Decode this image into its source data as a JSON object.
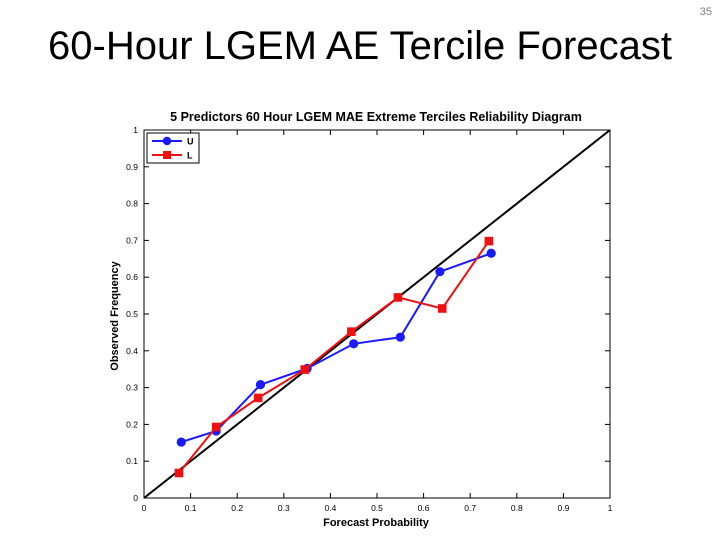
{
  "slide": {
    "number": "35",
    "title": "60-Hour LGEM AE Tercile Forecast"
  },
  "chart_data": {
    "type": "line",
    "title": "5 Predictors  60  Hour LGEM MAE Extreme Terciles Reliability Diagram",
    "xlabel": "Forecast Probability",
    "ylabel": "Observed Frequency",
    "xlim": [
      0,
      1
    ],
    "ylim": [
      0,
      1
    ],
    "xticks": [
      "0",
      "0.1",
      "0.2",
      "0.3",
      "0.4",
      "0.5",
      "0.6",
      "0.7",
      "0.8",
      "0.9",
      "1"
    ],
    "yticks": [
      "0",
      "0.1",
      "0.2",
      "0.3",
      "0.4",
      "0.5",
      "0.6",
      "0.7",
      "0.8",
      "0.9",
      "1"
    ],
    "legend_position": "top-left",
    "reference_line": [
      [
        0,
        0
      ],
      [
        1,
        1
      ]
    ],
    "series": [
      {
        "name": "U",
        "color": "#1a1aff",
        "marker": "circle",
        "x": [
          0.08,
          0.155,
          0.25,
          0.35,
          0.45,
          0.55,
          0.635,
          0.745
        ],
        "y": [
          0.152,
          0.182,
          0.308,
          0.352,
          0.419,
          0.437,
          0.615,
          0.665
        ]
      },
      {
        "name": "L",
        "color": "#ee1111",
        "marker": "square",
        "x": [
          0.075,
          0.155,
          0.245,
          0.345,
          0.445,
          0.545,
          0.64,
          0.74
        ],
        "y": [
          0.068,
          0.193,
          0.272,
          0.349,
          0.452,
          0.545,
          0.515,
          0.698
        ]
      }
    ]
  }
}
